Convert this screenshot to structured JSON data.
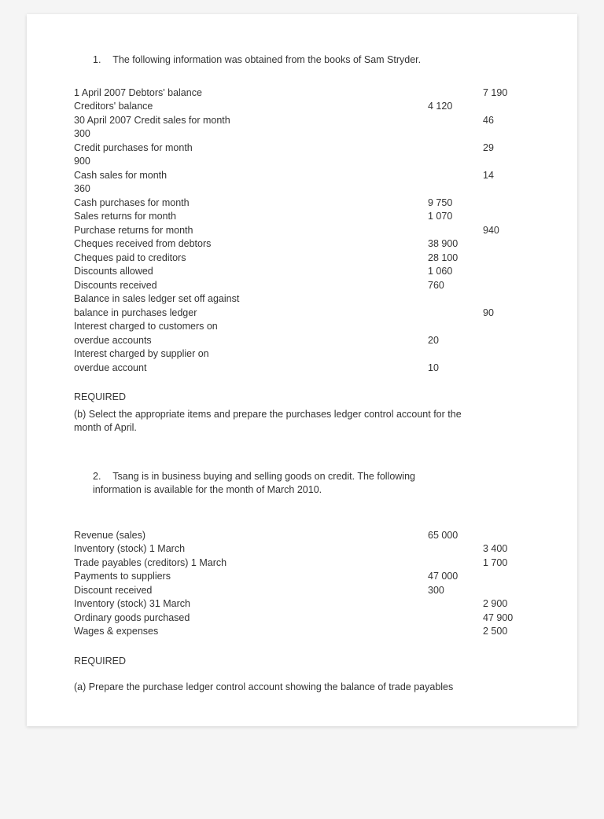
{
  "text_color": "#333333",
  "background": "#ffffff",
  "font_family": "Verdana, Geneva, sans-serif",
  "font_size_pt": 9,
  "q1": {
    "number": "1.",
    "intro": "The following information was obtained from the books of Sam Stryder.",
    "rows": [
      {
        "label": "1 April 2007 Debtors' balance",
        "col1": "",
        "col2": "7 190"
      },
      {
        "label": "Creditors' balance",
        "col1": "4 120",
        "col2": ""
      },
      {
        "label": "30 April 2007 Credit sales for month",
        "col1": "",
        "col2": "46"
      },
      {
        "label": "300",
        "col1": "",
        "col2": ""
      },
      {
        "label": "Credit purchases for month",
        "col1": "",
        "col2": "29"
      },
      {
        "label": "900",
        "col1": "",
        "col2": ""
      },
      {
        "label": "Cash sales for month",
        "col1": "",
        "col2": "14"
      },
      {
        "label": "360",
        "col1": "",
        "col2": ""
      },
      {
        "label": "Cash purchases for month",
        "col1": "9 750",
        "col2": ""
      },
      {
        "label": "Sales returns for month",
        "col1": "1 070",
        "col2": ""
      },
      {
        "label": "Purchase returns for month",
        "col1": "",
        "col2": "940"
      },
      {
        "label": "Cheques received from debtors",
        "col1": "38 900",
        "col2": ""
      },
      {
        "label": "Cheques paid to creditors",
        "col1": "28 100",
        "col2": ""
      },
      {
        "label": "Discounts allowed",
        "col1": "1 060",
        "col2": ""
      },
      {
        "label": "Discounts received",
        "col1": "760",
        "col2": ""
      },
      {
        "label": "Balance in sales ledger set off against",
        "col1": "",
        "col2": ""
      },
      {
        "label": "balance in purchases ledger",
        "col1": "",
        "col2": "90"
      },
      {
        "label": "Interest charged to customers on",
        "col1": "",
        "col2": ""
      },
      {
        "label": "overdue accounts",
        "col1": "20",
        "col2": ""
      },
      {
        "label": "Interest charged by supplier on",
        "col1": "",
        "col2": ""
      },
      {
        "label": "overdue account",
        "col1": "10",
        "col2": ""
      }
    ],
    "required_heading": "REQUIRED",
    "required_body_lines": [
      "(b) Select the appropriate items and prepare the purchases ledger control account for the",
      "month of April."
    ]
  },
  "q2": {
    "number": "2.",
    "intro_lines": [
      "Tsang is in business buying and selling goods on credit. The following",
      "information is available for the month of March 2010."
    ],
    "rows": [
      {
        "label": "Revenue (sales)",
        "col1": "65 000",
        "col2": ""
      },
      {
        "label": "Inventory (stock) 1 March",
        "col1": "",
        "col2": "3 400"
      },
      {
        "label": "Trade payables (creditors) 1 March",
        "col1": "",
        "col2": "1 700"
      },
      {
        "label": "Payments to suppliers",
        "col1": "47 000",
        "col2": ""
      },
      {
        "label": "Discount received",
        "col1": "300",
        "col2": ""
      },
      {
        "label": "Inventory (stock) 31 March",
        "col1": "",
        "col2": "2 900"
      },
      {
        "label": "Ordinary goods purchased",
        "col1": "",
        "col2": "47 900"
      },
      {
        "label": "Wages & expenses",
        "col1": "",
        "col2": "2 500"
      }
    ],
    "required_heading": "REQUIRED",
    "required_body_lines": [
      "(a) Prepare the purchase ledger control account showing the balance of trade payables"
    ]
  }
}
